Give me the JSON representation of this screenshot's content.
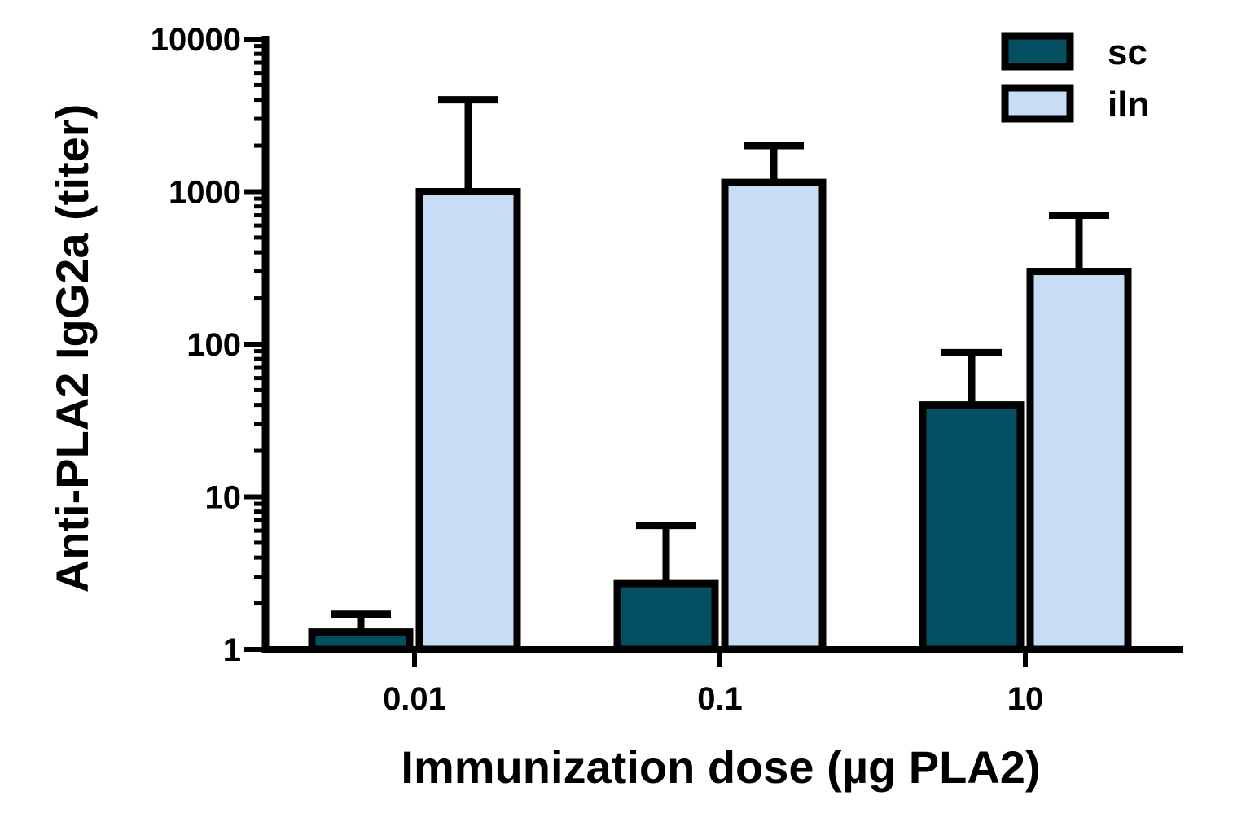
{
  "chart_data": {
    "type": "bar",
    "title": "",
    "xlabel": "Immunization dose (µg PLA2)",
    "ylabel": "Anti-PLA2 IgG2a (titer)",
    "yscale": "log",
    "ylim": [
      1,
      10000
    ],
    "yticks": [
      "1",
      "10",
      "100",
      "1000",
      "10000"
    ],
    "categories": [
      "0.01",
      "0.1",
      "10"
    ],
    "series": [
      {
        "name": "sc",
        "color": "#044F61",
        "values": [
          1.3,
          2.7,
          40
        ],
        "error_upper": [
          1.7,
          6.5,
          88
        ]
      },
      {
        "name": "iln",
        "color": "#C8DDF5",
        "values": [
          1000,
          1150,
          300
        ],
        "error_upper": [
          4000,
          2000,
          700
        ]
      }
    ],
    "legend_position": "top-right",
    "grid": false
  }
}
